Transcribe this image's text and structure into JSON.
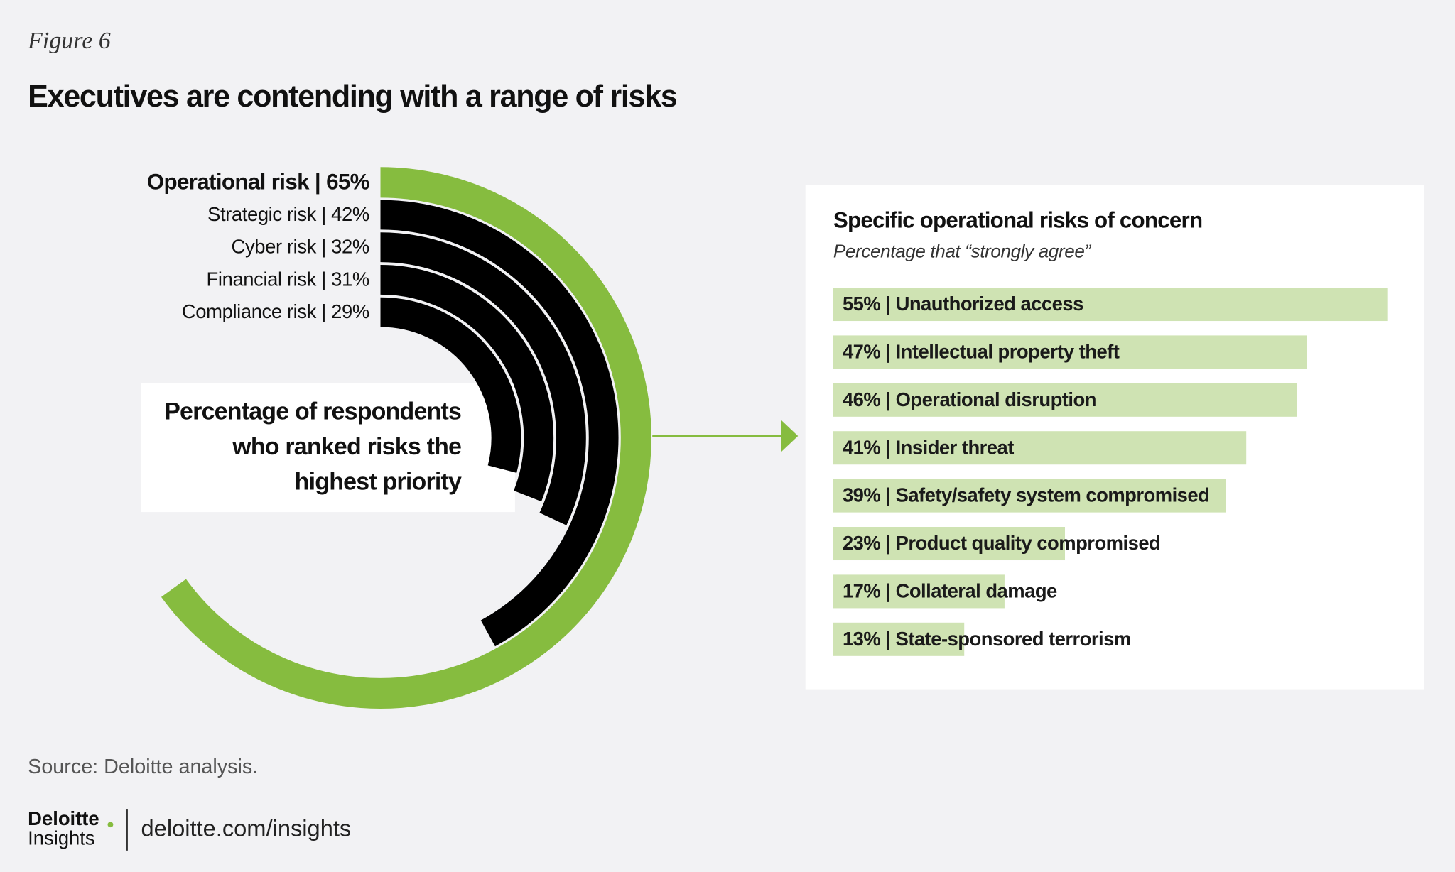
{
  "figure_label": "Figure 6",
  "title": "Executives are contending with a range of risks",
  "chart_data": [
    {
      "type": "radial_bar",
      "ylim": [
        0,
        100
      ],
      "values": [
        65,
        42,
        32,
        31,
        29
      ],
      "value_labels": [
        "Operational risk | 65%",
        "Strategic risk | 42%",
        "Cyber risk | 32%",
        "Financial risk | 31%",
        "Compliance risk | 29%"
      ],
      "colors": [
        "#86bc3f",
        "#000000",
        "#000000",
        "#000000",
        "#000000"
      ],
      "annotation": [
        "Percentage of respondents",
        "who ranked risks the",
        "highest priority"
      ]
    },
    {
      "type": "bar",
      "orientation": "horizontal",
      "title": "Specific operational risks of concern",
      "subtitle": "Percentage that “strongly agree”",
      "values": [
        55,
        47,
        46,
        41,
        39,
        23,
        17,
        13
      ],
      "value_labels": [
        "55% | Unauthorized access",
        "47% | Intellectual property theft",
        "46% | Operational disruption",
        "41% | Insider threat",
        "39% | Safety/safety system compromised",
        "23% | Product quality compromised",
        "17% | Collateral damage",
        "13% | State-sponsored terrorism"
      ],
      "color": "#cfe3b3"
    }
  ],
  "source": "Source: Deloitte analysis.",
  "logo": {
    "brand": "Deloitte",
    "sub": "Insights"
  },
  "url": "deloitte.com/insights"
}
